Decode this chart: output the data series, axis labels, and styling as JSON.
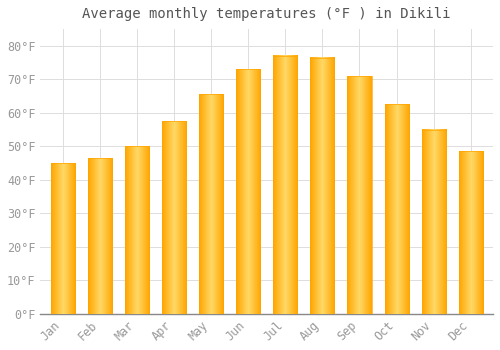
{
  "title": "Average monthly temperatures (°F ) in Dikili",
  "months": [
    "Jan",
    "Feb",
    "Mar",
    "Apr",
    "May",
    "Jun",
    "Jul",
    "Aug",
    "Sep",
    "Oct",
    "Nov",
    "Dec"
  ],
  "values": [
    45,
    46.5,
    50,
    57.5,
    65.5,
    73,
    77,
    76.5,
    71,
    62.5,
    55,
    48.5
  ],
  "bar_color_light": "#FFD966",
  "bar_color_dark": "#FFA500",
  "background_color": "#FFFFFF",
  "grid_color": "#DDDDDD",
  "ylim": [
    0,
    85
  ],
  "yticks": [
    0,
    10,
    20,
    30,
    40,
    50,
    60,
    70,
    80
  ],
  "title_fontsize": 10,
  "tick_fontsize": 8.5,
  "tick_color": "#999999",
  "title_color": "#555555",
  "font_family": "monospace",
  "bar_width": 0.65
}
